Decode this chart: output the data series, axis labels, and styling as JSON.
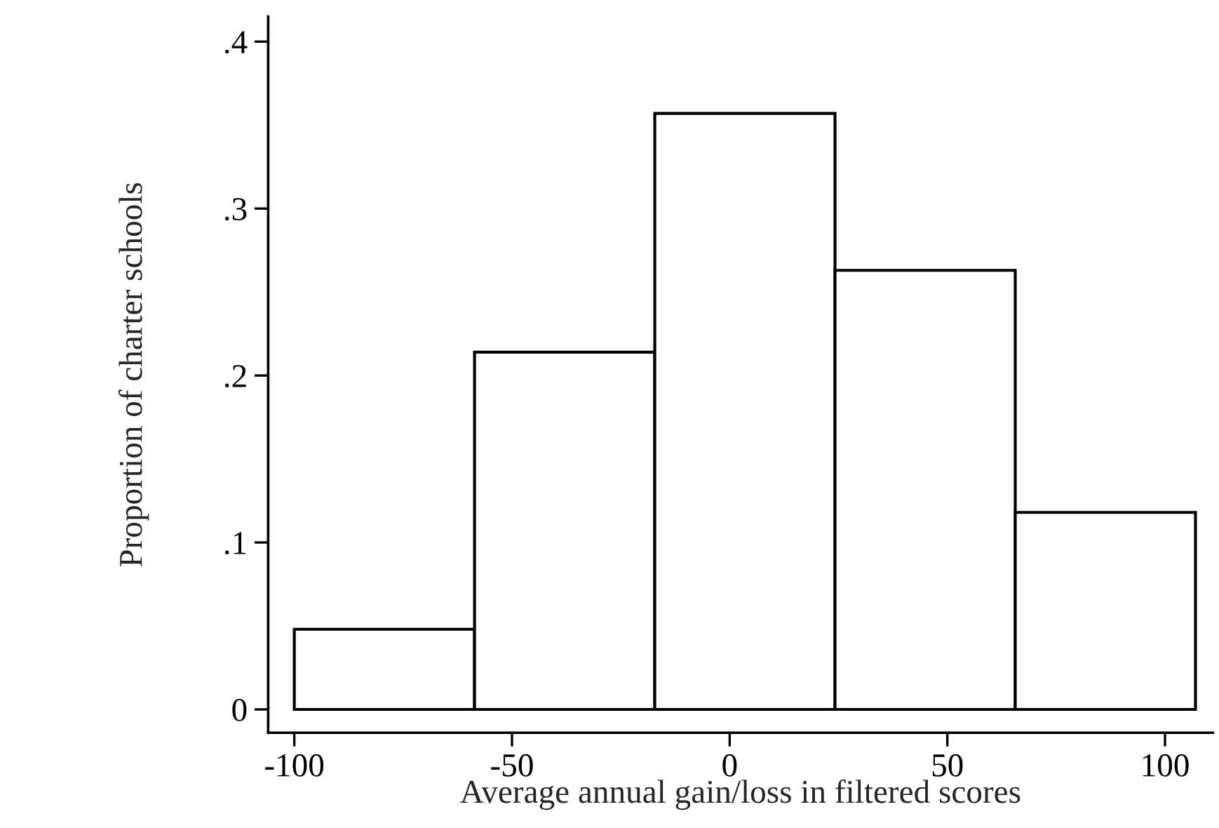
{
  "chart_data": {
    "type": "histogram",
    "xlabel": "Average annual gain/loss in filtered scores",
    "ylabel": "Proportion of charter schools",
    "bins": [
      -100,
      -58.6,
      -17.2,
      24.2,
      65.6,
      107
    ],
    "values": [
      0.048,
      0.214,
      0.357,
      0.263,
      0.118
    ],
    "color": "#ffffff",
    "xlim": [
      -106,
      111
    ],
    "ylim": [
      -0.014,
      0.415
    ],
    "xticks": [
      -100,
      -50,
      0,
      50,
      100
    ],
    "yticks": [
      {
        "value": 0,
        "label": "0"
      },
      {
        "value": 0.1,
        "label": ".1"
      },
      {
        "value": 0.2,
        "label": ".2"
      },
      {
        "value": 0.3,
        "label": ".3"
      },
      {
        "value": 0.4,
        "label": ".4"
      }
    ],
    "grid": false
  }
}
